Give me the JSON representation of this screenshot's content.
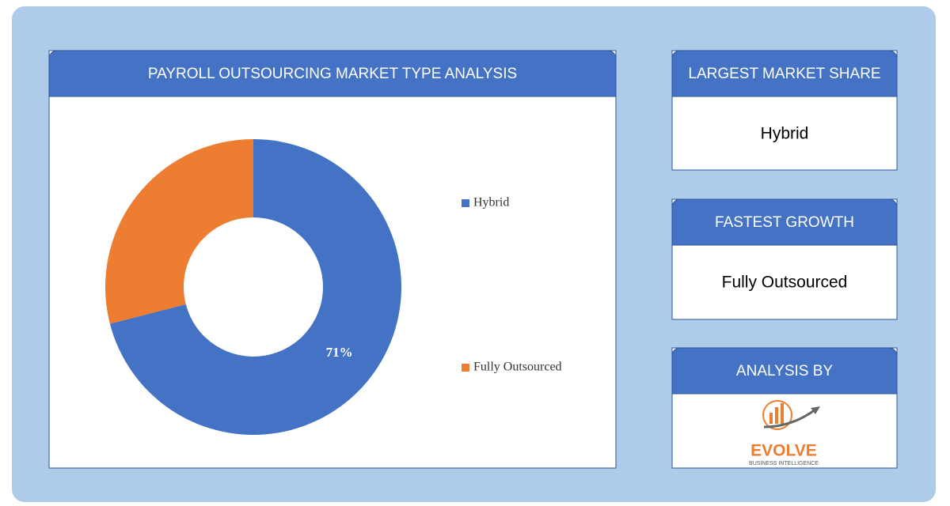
{
  "chart_data": {
    "type": "donut",
    "title": "PAYROLL OUTSOURCING MARKET TYPE ANALYSIS",
    "categories": [
      "Hybrid",
      "Fully Outsourced"
    ],
    "values": [
      71,
      29
    ],
    "value_labels": [
      "71%",
      null
    ],
    "colors": [
      "#4472c4",
      "#ed7d31"
    ],
    "legend": "right"
  },
  "panels": [
    {
      "title": "LARGEST MARKET SHARE",
      "value": "Hybrid"
    },
    {
      "title": "FASTEST GROWTH",
      "value": "Fully Outsourced"
    }
  ],
  "analysis": {
    "title": "ANALYSIS BY",
    "logo_name": "EVOLVE",
    "logo_tagline": "BUSINESS INTELLIGENCE"
  }
}
